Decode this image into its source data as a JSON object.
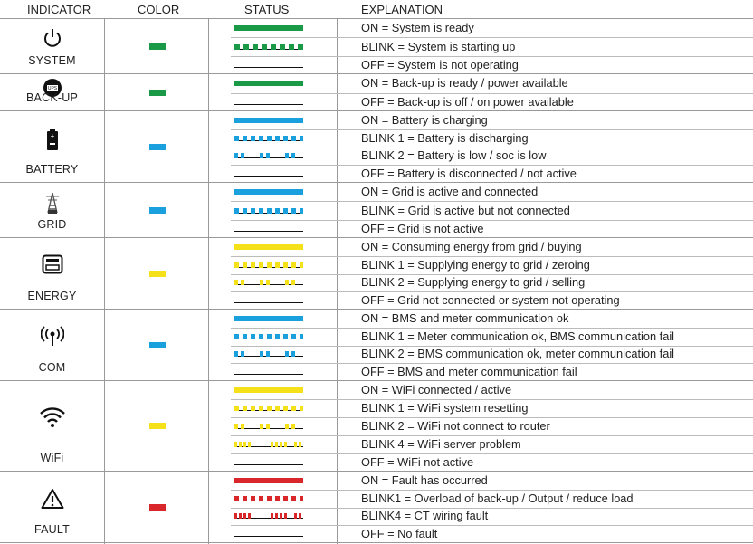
{
  "headers": {
    "indicator": "INDICATOR",
    "color": "COLOR",
    "status": "STATUS",
    "explanation": "EXPLANATION"
  },
  "colors": {
    "green": "#1a9a47",
    "blue": "#1aa0dc",
    "yellow": "#f5e11a",
    "red": "#d8262b",
    "black": "#111111"
  },
  "groups": [
    {
      "label": "SYSTEM",
      "icon": "power-icon",
      "color": "green",
      "rows": [
        {
          "pattern": "on",
          "text": "ON = System is ready"
        },
        {
          "pattern": "blink",
          "text": "BLINK =  System is starting up"
        },
        {
          "pattern": "off",
          "text": "OFF = System is not operating"
        }
      ]
    },
    {
      "label": "BACK-UP",
      "icon": "ups-icon",
      "color": "green",
      "rows": [
        {
          "pattern": "on",
          "text": "ON = Back-up is ready / power available"
        },
        {
          "pattern": "off",
          "text": "OFF = Back-up is  off  / on power available"
        }
      ]
    },
    {
      "label": "BATTERY",
      "icon": "battery-icon",
      "color": "blue",
      "rows": [
        {
          "pattern": "on",
          "text": "ON = Battery is charging"
        },
        {
          "pattern": "blink1",
          "text": "BLINK 1 = Battery is discharging"
        },
        {
          "pattern": "blink2",
          "text": "BLINK 2 = Battery is low / soc is low"
        },
        {
          "pattern": "off",
          "text": "OFF = Battery is disconnected / not active"
        }
      ]
    },
    {
      "label": "GRID",
      "icon": "grid-tower-icon",
      "color": "blue",
      "rows": [
        {
          "pattern": "on",
          "text": "ON = Grid is active and connected"
        },
        {
          "pattern": "blink1",
          "text": "BLINK = Grid is active but not connected"
        },
        {
          "pattern": "off",
          "text": "OFF = Grid is not active"
        }
      ]
    },
    {
      "label": "ENERGY",
      "icon": "meter-icon",
      "color": "yellow",
      "rows": [
        {
          "pattern": "on",
          "text": "ON = Consuming energy from grid / buying"
        },
        {
          "pattern": "blink1",
          "text": "BLINK 1 = Supplying energy to grid / zeroing"
        },
        {
          "pattern": "blink2",
          "text": "BLINK 2 = Supplying energy to grid / selling"
        },
        {
          "pattern": "off",
          "text": "OFF = Grid not connected or system not operating"
        }
      ]
    },
    {
      "label": "COM",
      "icon": "antenna-icon",
      "color": "blue",
      "rows": [
        {
          "pattern": "on",
          "text": "ON = BMS and meter communication ok"
        },
        {
          "pattern": "blink1",
          "text": "BLINK 1 = Meter communication ok, BMS communication fail"
        },
        {
          "pattern": "blink2",
          "text": "BLINK 2 = BMS communication ok, meter communication fail"
        },
        {
          "pattern": "off",
          "text": "OFF = BMS and meter communication fail"
        }
      ]
    },
    {
      "label": "WiFi",
      "icon": "wifi-icon",
      "color": "yellow",
      "rows": [
        {
          "pattern": "on",
          "text": "ON = WiFi connected / active"
        },
        {
          "pattern": "blink1",
          "text": "BLINK 1 = WiFi system resetting"
        },
        {
          "pattern": "blink2",
          "text": "BLINK 2 = WiFi not connect to router"
        },
        {
          "pattern": "blink4",
          "text": "BLINK 4 = WiFi server problem"
        },
        {
          "pattern": "off",
          "text": "OFF = WiFi not active"
        }
      ]
    },
    {
      "label": "FAULT",
      "icon": "warning-icon",
      "color": "red",
      "rows": [
        {
          "pattern": "on",
          "text": "ON = Fault has occurred"
        },
        {
          "pattern": "blink1",
          "text": "BLINK1 = Overload of back-up / Output / reduce load"
        },
        {
          "pattern": "blink4",
          "text": "BLINK4 = CT wiring fault"
        },
        {
          "pattern": "off",
          "text": "OFF  = No fault"
        }
      ]
    }
  ]
}
